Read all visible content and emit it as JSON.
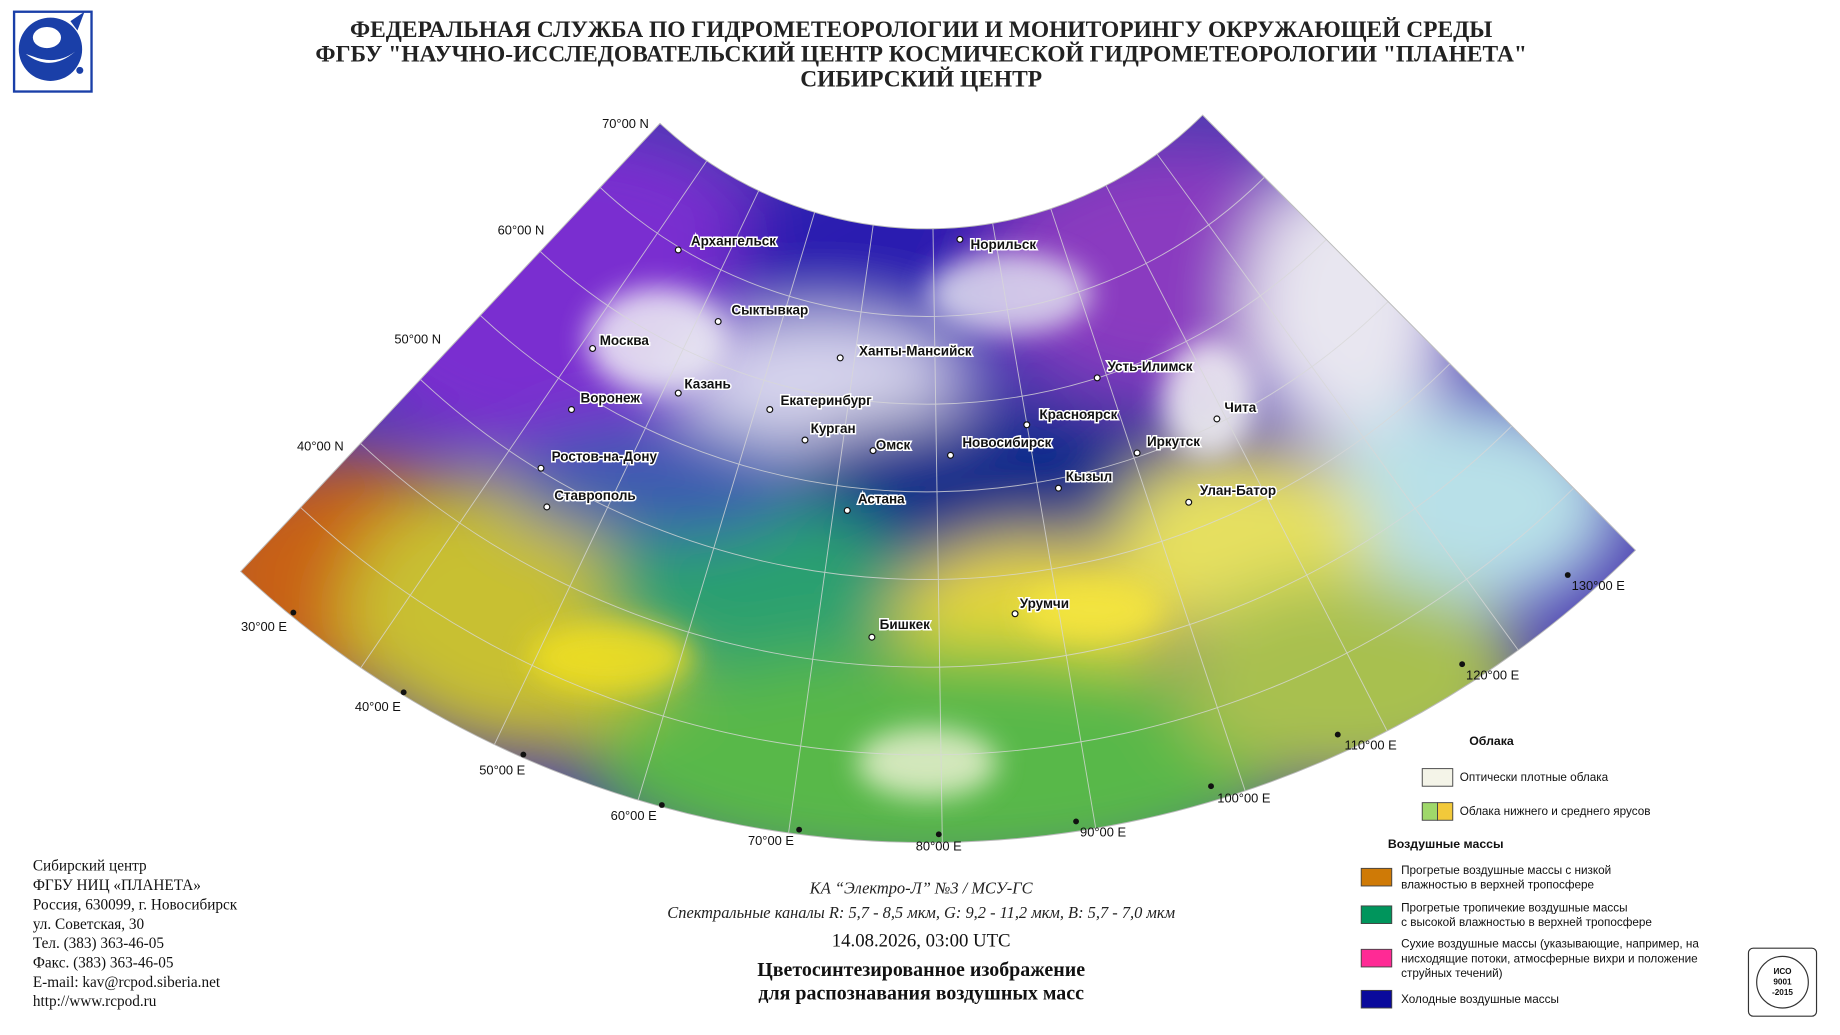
{
  "header": {
    "title_lines": [
      "ФЕДЕРАЛЬНАЯ СЛУЖБА ПО ГИДРОМЕТЕОРОЛОГИИ И МОНИТОРИНГУ ОКРУЖАЮЩЕЙ СРЕДЫ",
      "ФГБУ \"НАУЧНО-ИССЛЕДОВАТЕЛЬСКИЙ ЦЕНТР КОСМИЧЕСКОЙ ГИДРОМЕТЕОРОЛОГИИ \"ПЛАНЕТА\"",
      "СИБИРСКИЙ ЦЕНТР"
    ]
  },
  "map": {
    "lat_labels": [
      "70°00 N",
      "60°00 N",
      "50°00 N",
      "40°00 N"
    ],
    "lon_labels": [
      "30°00 E",
      "40°00 E",
      "50°00 E",
      "60°00 E",
      "70°00 E",
      "80°00 E",
      "90°00 E",
      "100°00 E",
      "110°00 E",
      "120°00 E",
      "130°00 E"
    ],
    "cities": [
      "Архангельск",
      "Норильск",
      "Сыктывкар",
      "Москва",
      "Ханты-Мансийск",
      "Казань",
      "Воронеж",
      "Усть-Илимск",
      "Екатеринбург",
      "Красноярск",
      "Чита",
      "Курган",
      "Омск",
      "Новосибирск",
      "Иркутск",
      "Ростов-на-Дону",
      "Кызыл",
      "Улан-Батор",
      "Ставрополь",
      "Астана",
      "Урумчи",
      "Бишкек"
    ]
  },
  "legend": {
    "clouds_title": "Облака",
    "clouds": [
      {
        "lines": [
          "Оптически плотные облака"
        ],
        "colors": [
          "#f4f4e8"
        ]
      },
      {
        "lines": [
          "Облака нижнего и среднего ярусов"
        ],
        "colors": [
          "#9fd86a",
          "#f2c93a"
        ]
      }
    ],
    "air_title": "Воздушные массы",
    "air": [
      {
        "lines": [
          "Прогретые воздушные массы с низкой",
          "влажностью в верхней тропосфере"
        ],
        "colors": [
          "#cf7a06"
        ]
      },
      {
        "lines": [
          "Прогретые тропичекие воздушные массы",
          "с высокой влажностью в верхней тропосфере"
        ],
        "colors": [
          "#00955c"
        ]
      },
      {
        "lines": [
          "Сухие воздушные массы (указывающие, например, на",
          "нисходящие потоки, атмосферные вихри и положение",
          "струйных течений)"
        ],
        "colors": [
          "#ff2a95"
        ]
      },
      {
        "lines": [
          "Холодные воздушные массы"
        ],
        "colors": [
          "#0a0a9c"
        ]
      }
    ]
  },
  "contact": [
    "Сибирский центр",
    "ФГБУ НИЦ «ПЛАНЕТА»",
    "Россия, 630099, г. Новосибирск",
    "ул. Советская, 30",
    "Тел. (383) 363-46-05",
    "Факс. (383) 363-46-05",
    "E-mail: kav@rcpod.siberia.net",
    "http://www.rcpod.ru"
  ],
  "caption": {
    "satellite": "КА “Электро-Л” №3 / МСУ-ГС",
    "channels": "Спектральные каналы R: 5,7 - 8,5 мкм, G: 9,2 - 11,2 мкм, B: 5,7 - 7,0 мкм",
    "datetime": "14.08.2026, 03:00 UTC",
    "title_lines": [
      "Цветосинтезированное изображение",
      "для распознавания воздушных масс"
    ]
  },
  "badge": [
    "ИСО",
    "9001",
    "-2015"
  ]
}
